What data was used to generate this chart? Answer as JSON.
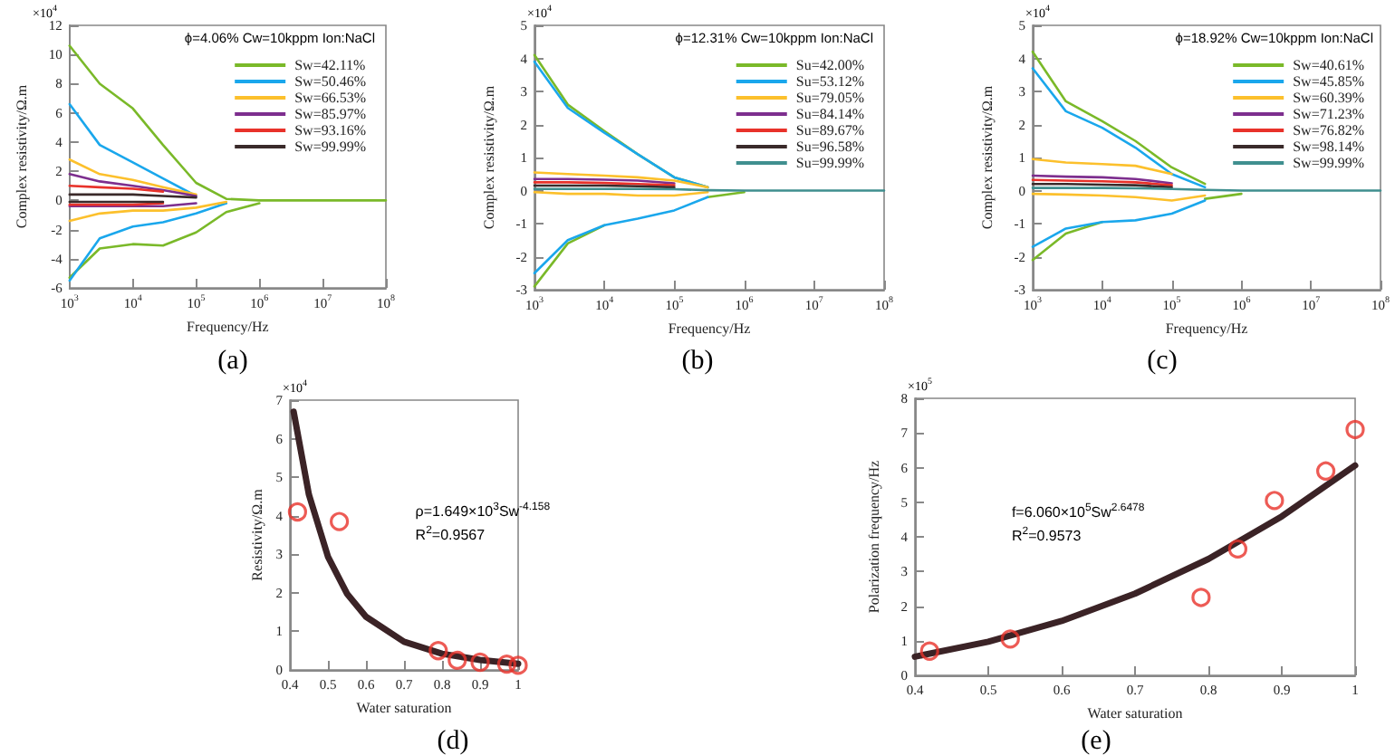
{
  "chart_data": [
    {
      "type": "line",
      "xlabel": "Frequency/Hz",
      "ylabel": "Complex resistivity/Ω.m",
      "legend_title": "ϕ=4.06% Cw=10kppm Ion:NaCl",
      "log": "x",
      "grid": false,
      "legend": "top right",
      "marker": "none",
      "annotations": [
        "×10$^{4}$",
        "(a)"
      ],
      "x": [
        1000,
        3000,
        10000,
        30000,
        100000,
        300000,
        1000000,
        10000000,
        100000000
      ],
      "xlim": [
        1000,
        100000000
      ],
      "xticks": [
        {
          "value": 1000,
          "label": "10$^{3}$"
        },
        {
          "value": 10000,
          "label": "10$^{4}$"
        },
        {
          "value": 100000,
          "label": "10$^{5}$"
        },
        {
          "value": 1000000,
          "label": "10$^{6}$"
        },
        {
          "value": 10000000,
          "label": "10$^{7}$"
        },
        {
          "value": 100000000,
          "label": "10$^{8}$"
        }
      ],
      "ylim": [
        -6,
        12
      ],
      "yticks": [
        -6,
        -4,
        -2,
        0,
        2,
        4,
        6,
        8,
        10,
        12
      ],
      "series": [
        {
          "name": "Sw=42.11%",
          "color": "#7ab929",
          "values": [
            10.6,
            8,
            6.3,
            3.8,
            1.2,
            0.1,
            0,
            0,
            0
          ]
        },
        {
          "color": "#7ab929",
          "values": [
            -5.3,
            -3.3,
            -3.0,
            -3.1,
            -2.2,
            -0.8,
            -0.2,
            null,
            null
          ]
        },
        {
          "name": "Sw=50.46%",
          "color": "#1aa7ec",
          "values": [
            6.6,
            3.8,
            2.6,
            1.5,
            0.3,
            null,
            null,
            null,
            null
          ]
        },
        {
          "color": "#1aa7ec",
          "values": [
            -5.5,
            -2.6,
            -1.8,
            -1.5,
            -0.9,
            -0.2,
            null,
            null,
            null
          ]
        },
        {
          "name": "Sw=66.53%",
          "color": "#fcc02c",
          "values": [
            2.8,
            1.8,
            1.4,
            0.9,
            0.4,
            null,
            null,
            null,
            null
          ]
        },
        {
          "color": "#fcc02c",
          "values": [
            -1.4,
            -0.9,
            -0.7,
            -0.7,
            -0.5,
            -0.1,
            null,
            null,
            null
          ]
        },
        {
          "name": "Sw=85.97%",
          "color": "#7d2e8e",
          "values": [
            1.8,
            1.3,
            1.0,
            0.7,
            0.3,
            null,
            null,
            null,
            null
          ]
        },
        {
          "color": "#7d2e8e",
          "values": [
            -0.4,
            -0.4,
            -0.4,
            -0.4,
            -0.2,
            null,
            null,
            null,
            null
          ]
        },
        {
          "name": "Sw=93.16%",
          "color": "#e8322a",
          "values": [
            1.0,
            0.9,
            0.8,
            0.6,
            null,
            null,
            null,
            null,
            null
          ]
        },
        {
          "color": "#e8322a",
          "values": [
            -0.3,
            -0.3,
            -0.3,
            -0.2,
            null,
            null,
            null,
            null,
            null
          ]
        },
        {
          "name": "Sw=99.99%",
          "color": "#3a2a2a",
          "values": [
            0.4,
            0.4,
            0.4,
            0.3,
            0.2,
            null,
            null,
            null,
            null
          ]
        },
        {
          "color": "#3a2a2a",
          "values": [
            -0.1,
            -0.1,
            -0.1,
            -0.1,
            null,
            null,
            null,
            null,
            null
          ]
        }
      ]
    },
    {
      "type": "line",
      "xlabel": "Frequency/Hz",
      "ylabel": "Complex resistivity/Ω.m",
      "legend_title": "ϕ=12.31% Cw=10kppm Ion:NaCl",
      "log": "x",
      "grid": false,
      "legend": "top right",
      "marker": "none",
      "annotations": [
        "×10$^{4}$",
        "(b)"
      ],
      "x": [
        1000,
        3000,
        10000,
        30000,
        100000,
        300000,
        1000000,
        10000000,
        100000000
      ],
      "xlim": [
        1000,
        100000000
      ],
      "xticks": [
        {
          "value": 1000,
          "label": "10$^{3}$"
        },
        {
          "value": 10000,
          "label": "10$^{4}$"
        },
        {
          "value": 100000,
          "label": "10$^{5}$"
        },
        {
          "value": 1000000,
          "label": "10$^{6}$"
        },
        {
          "value": 10000000,
          "label": "10$^{7}$"
        },
        {
          "value": 100000000,
          "label": "10$^{8}$"
        }
      ],
      "ylim": [
        -3,
        5
      ],
      "yticks": [
        -3,
        -2,
        -1,
        0,
        1,
        2,
        3,
        4,
        5
      ],
      "series": [
        {
          "name": "Su=42.00%",
          "color": "#7ab929",
          "values": [
            4.1,
            2.6,
            1.8,
            1.1,
            0.4,
            0.1,
            null,
            null,
            null
          ]
        },
        {
          "color": "#7ab929",
          "values": [
            -2.9,
            -1.6,
            -1.05,
            null,
            null,
            -0.2,
            -0.05,
            null,
            null
          ]
        },
        {
          "name": "Su=53.12%",
          "color": "#1aa7ec",
          "values": [
            3.9,
            2.5,
            1.75,
            1.1,
            0.4,
            0.1,
            null,
            null,
            null
          ]
        },
        {
          "color": "#1aa7ec",
          "values": [
            -2.5,
            -1.5,
            -1.05,
            -0.85,
            -0.6,
            -0.2,
            null,
            null,
            null
          ]
        },
        {
          "name": "Su=79.05%",
          "color": "#fcc02c",
          "values": [
            0.55,
            0.5,
            0.45,
            0.4,
            0.3,
            0.1,
            null,
            null,
            null
          ]
        },
        {
          "color": "#fcc02c",
          "values": [
            -0.05,
            -0.1,
            -0.1,
            -0.15,
            -0.15,
            -0.05,
            null,
            null,
            null
          ]
        },
        {
          "name": "Su=84.14%",
          "color": "#7d2e8e",
          "values": [
            0.35,
            0.35,
            0.33,
            0.3,
            0.22,
            null,
            null,
            null,
            null
          ]
        },
        {
          "name": "Su=89.67%",
          "color": "#e8322a",
          "values": [
            0.25,
            0.25,
            0.23,
            0.2,
            0.16,
            null,
            null,
            null,
            null
          ]
        },
        {
          "name": "Su=96.58%",
          "color": "#3a2a2a",
          "values": [
            0.15,
            0.15,
            0.15,
            0.13,
            0.1,
            null,
            null,
            null,
            null
          ]
        },
        {
          "name": "Su=99.99%",
          "color": "#3f8f8f",
          "values": [
            0.05,
            0.05,
            0.05,
            0.05,
            0.04,
            0.01,
            0,
            0,
            0
          ]
        }
      ]
    },
    {
      "type": "line",
      "xlabel": "Frequency/Hz",
      "ylabel": "Complex resistivity/Ω.m",
      "legend_title": "ϕ=18.92% Cw=10kppm Ion:NaCl",
      "log": "x",
      "grid": false,
      "legend": "top right",
      "marker": "none",
      "annotations": [
        "×10$^{4}$",
        "(c)"
      ],
      "x": [
        1000,
        3000,
        10000,
        30000,
        100000,
        300000,
        1000000,
        10000000,
        100000000
      ],
      "xlim": [
        1000,
        100000000
      ],
      "xticks": [
        {
          "value": 1000,
          "label": "10$^{3}$"
        },
        {
          "value": 10000,
          "label": "10$^{4}$"
        },
        {
          "value": 100000,
          "label": "10$^{5}$"
        },
        {
          "value": 1000000,
          "label": "10$^{6}$"
        },
        {
          "value": 10000000,
          "label": "10$^{7}$"
        },
        {
          "value": 100000000,
          "label": "10$^{8}$"
        }
      ],
      "ylim": [
        -3,
        5
      ],
      "yticks": [
        -3,
        -2,
        -1,
        0,
        1,
        2,
        3,
        4,
        5
      ],
      "series": [
        {
          "name": "Sw=40.61%",
          "color": "#7ab929",
          "values": [
            4.2,
            2.7,
            2.1,
            1.5,
            0.7,
            0.2,
            null,
            null,
            null
          ]
        },
        {
          "color": "#7ab929",
          "values": [
            -2.1,
            -1.3,
            -0.95,
            null,
            null,
            -0.25,
            -0.1,
            null,
            null
          ]
        },
        {
          "name": "Sw=45.85%",
          "color": "#1aa7ec",
          "values": [
            3.7,
            2.4,
            1.9,
            1.3,
            0.5,
            0.1,
            null,
            null,
            null
          ]
        },
        {
          "color": "#1aa7ec",
          "values": [
            -1.7,
            -1.15,
            -0.95,
            -0.9,
            -0.7,
            -0.3,
            null,
            null,
            null
          ]
        },
        {
          "name": "Sw=60.39%",
          "color": "#fcc02c",
          "values": [
            0.95,
            0.85,
            0.8,
            0.75,
            0.5,
            null,
            null,
            null,
            null
          ]
        },
        {
          "color": "#fcc02c",
          "values": [
            -0.1,
            -0.12,
            -0.15,
            -0.2,
            -0.3,
            -0.15,
            null,
            null,
            null
          ]
        },
        {
          "name": "Sw=71.23%",
          "color": "#7d2e8e",
          "values": [
            0.45,
            0.42,
            0.4,
            0.35,
            0.22,
            null,
            null,
            null,
            null
          ]
        },
        {
          "name": "Sw=76.82%",
          "color": "#e8322a",
          "values": [
            0.32,
            0.3,
            0.28,
            0.25,
            0.16,
            null,
            null,
            null,
            null
          ]
        },
        {
          "name": "Sw=98.14%",
          "color": "#3a2a2a",
          "values": [
            0.2,
            0.2,
            0.18,
            0.16,
            0.1,
            null,
            null,
            null,
            null
          ]
        },
        {
          "name": "Sw=99.99%",
          "color": "#3f8f8f",
          "values": [
            0.08,
            0.08,
            0.08,
            0.07,
            0.05,
            0.02,
            0,
            0,
            0
          ]
        }
      ]
    },
    {
      "type": "scatter",
      "xlabel": "Water saturation",
      "ylabel": "Resistivity/Ω.m",
      "grid": false,
      "annotations": [
        "×10$^{4}$",
        "ρ=1.649×10$^{3}$Sw$^{-4.158}$",
        "R$^{2}$=0.9567",
        "(d)"
      ],
      "xlim": [
        0.4,
        1
      ],
      "xticks": [
        0.4,
        0.5,
        0.6,
        0.7,
        0.8,
        0.9,
        1
      ],
      "ylim": [
        0,
        7
      ],
      "yticks": [
        0,
        1,
        2,
        3,
        4,
        5,
        6,
        7
      ],
      "series": [
        {
          "type": "line",
          "color": "#3b2326",
          "marker": "none",
          "x": [
            0.41,
            0.45,
            0.5,
            0.55,
            0.6,
            0.7,
            0.8,
            0.9,
            1.0
          ],
          "values": [
            6.7,
            4.55,
            2.94,
            1.98,
            1.38,
            0.73,
            0.42,
            0.26,
            0.16
          ]
        },
        {
          "color": "#e8322a",
          "marker": "circle",
          "x": [
            0.42,
            0.53,
            0.79,
            0.84,
            0.9,
            0.97,
            1.0
          ],
          "values": [
            4.1,
            3.85,
            0.5,
            0.25,
            0.2,
            0.15,
            0.12
          ]
        }
      ]
    },
    {
      "type": "scatter",
      "xlabel": "Water saturation",
      "ylabel": "Polarization frequency/Hz",
      "grid": false,
      "annotations": [
        "×10$^{5}$",
        "f=6.060×10$^{5}$Sw$^{2.6478}$",
        "R$^{2}$=0.9573",
        "(e)"
      ],
      "xlim": [
        0.4,
        1
      ],
      "xticks": [
        0.4,
        0.5,
        0.6,
        0.7,
        0.8,
        0.9,
        1
      ],
      "ylim": [
        0,
        8
      ],
      "yticks": [
        0,
        1,
        2,
        3,
        4,
        5,
        6,
        7,
        8
      ],
      "series": [
        {
          "type": "line",
          "color": "#3b2326",
          "marker": "none",
          "x": [
            0.4,
            0.5,
            0.6,
            0.7,
            0.8,
            0.9,
            1.0
          ],
          "values": [
            0.54,
            0.97,
            1.57,
            2.36,
            3.36,
            4.59,
            6.06
          ]
        },
        {
          "color": "#e8322a",
          "marker": "circle",
          "x": [
            0.42,
            0.53,
            0.79,
            0.84,
            0.89,
            0.96,
            1.0
          ],
          "values": [
            0.7,
            1.05,
            2.25,
            3.65,
            5.05,
            5.9,
            7.1
          ]
        }
      ]
    }
  ]
}
